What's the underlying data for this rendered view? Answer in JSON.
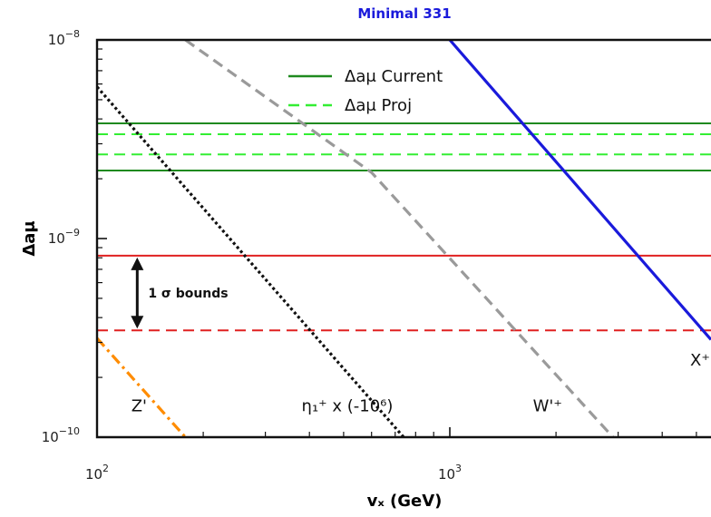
{
  "chart_data": {
    "type": "line",
    "title": "Minimal 331",
    "title_color": "#1a1adb",
    "xlabel": "vₓ (GeV)",
    "ylabel": "Δaμ",
    "xscale": "log",
    "yscale": "log",
    "xlim": [
      100,
      5500
    ],
    "ylim": [
      1e-10,
      1e-08
    ],
    "x_tick_labels": [
      {
        "base": "10",
        "exp": "2",
        "value": 100
      },
      {
        "base": "10",
        "exp": "3",
        "value": 1000
      }
    ],
    "y_tick_labels": [
      {
        "base": "10",
        "exp": "−10",
        "value": 1e-10
      },
      {
        "base": "10",
        "exp": "−9",
        "value": 1e-09
      },
      {
        "base": "10",
        "exp": "−8",
        "value": 1e-08
      }
    ],
    "grid": false,
    "legend": {
      "position": "top-center",
      "entries": [
        {
          "label": "Δaμ Current",
          "color": "#1f8a1f",
          "style": "solid"
        },
        {
          "label": "Δaμ Proj",
          "color": "#33ee33",
          "style": "dashed"
        }
      ]
    },
    "bands": [
      {
        "id": "current-upper",
        "y": 3.8e-09,
        "color": "#1f8a1f",
        "style": "solid"
      },
      {
        "id": "current-lower",
        "y": 2.2e-09,
        "color": "#1f8a1f",
        "style": "solid"
      },
      {
        "id": "proj-upper",
        "y": 3.35e-09,
        "color": "#33ee33",
        "style": "dashed"
      },
      {
        "id": "proj-lower",
        "y": 2.65e-09,
        "color": "#33ee33",
        "style": "dashed"
      },
      {
        "id": "sigma-upper",
        "y": 8.2e-10,
        "color": "#e02020",
        "style": "solid"
      },
      {
        "id": "sigma-lower",
        "y": 3.45e-10,
        "color": "#e02020",
        "style": "dashed"
      }
    ],
    "bounds_annotation": {
      "label": "1 σ bounds",
      "x": 130,
      "y_top": 8.2e-10,
      "y_bottom": 3.45e-10
    },
    "series": [
      {
        "name": "Z'",
        "color": "#ff8c00",
        "style": "dashdot",
        "points": [
          [
            100,
            3.15e-10
          ],
          [
            178,
            1e-10
          ]
        ]
      },
      {
        "name": "η₁⁺ x (-10⁶)",
        "color": "#111111",
        "style": "dotted",
        "points": [
          [
            100,
            5.8e-09
          ],
          [
            740,
            1e-10
          ]
        ]
      },
      {
        "name": "W'⁺",
        "color": "#9a9a9a",
        "style": "dashed",
        "points": [
          [
            178,
            1e-08
          ],
          [
            600,
            2.15e-09
          ],
          [
            2900,
            1e-10
          ]
        ]
      },
      {
        "name": "X⁺⁺",
        "color": "#1a1adb",
        "style": "solid",
        "points": [
          [
            1000,
            1e-08
          ],
          [
            5500,
            3.1e-10
          ]
        ]
      }
    ],
    "curve_labels": [
      {
        "series": "Z'",
        "text": "Z'",
        "x": 125,
        "y": 1.35e-10
      },
      {
        "series": "eta",
        "text": "η₁⁺ x (-10⁶)",
        "x": 380,
        "y": 1.35e-10
      },
      {
        "series": "W",
        "text": "W'⁺",
        "x": 1720,
        "y": 1.35e-10
      },
      {
        "series": "X",
        "text": "X⁺⁺",
        "x": 4800,
        "y": 2.3e-10
      }
    ]
  }
}
